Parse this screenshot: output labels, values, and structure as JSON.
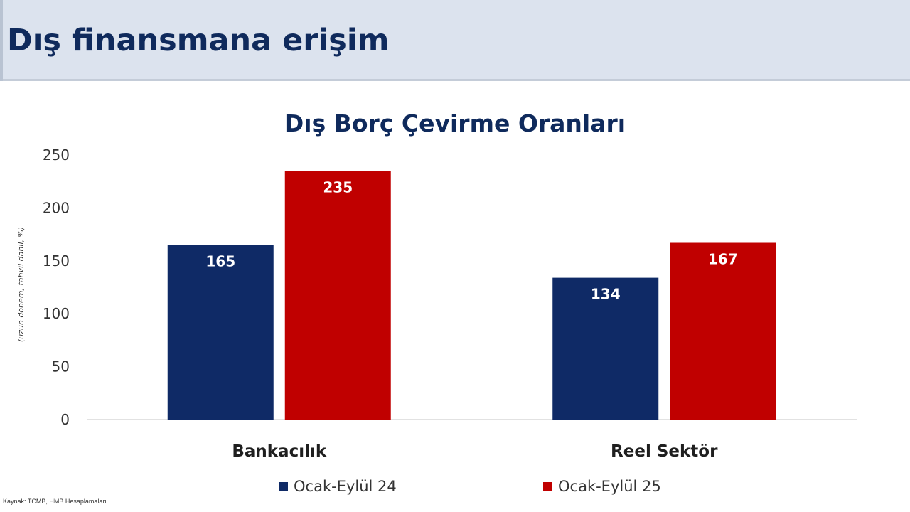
{
  "slide": {
    "title": "Dış finansmana erişim",
    "source": "Kaynak: TCMB, HMB Hesaplamaları"
  },
  "colors": {
    "header_bg": "#dce3ee",
    "title_text": "#0f2a5c",
    "series_1": "#0f2a66",
    "series_2": "#c00000",
    "axis_text": "#333333"
  },
  "chart_data": {
    "type": "bar",
    "title": "Dış Borç Çevirme Oranları",
    "ylabel": "(uzun dönem, tahvil dahil, %)",
    "xlabel": "",
    "categories": [
      "Bankacılık",
      "Reel Sektör"
    ],
    "series": [
      {
        "name": "Ocak-Eylül 24",
        "values": [
          165,
          134
        ],
        "color": "#0f2a66"
      },
      {
        "name": "Ocak-Eylül 25",
        "values": [
          235,
          167
        ],
        "color": "#c00000"
      }
    ],
    "ylim": [
      0,
      250
    ],
    "yticks": [
      0,
      50,
      100,
      150,
      200,
      250
    ],
    "grid": false,
    "legend": "bottom",
    "data_labels": true
  }
}
